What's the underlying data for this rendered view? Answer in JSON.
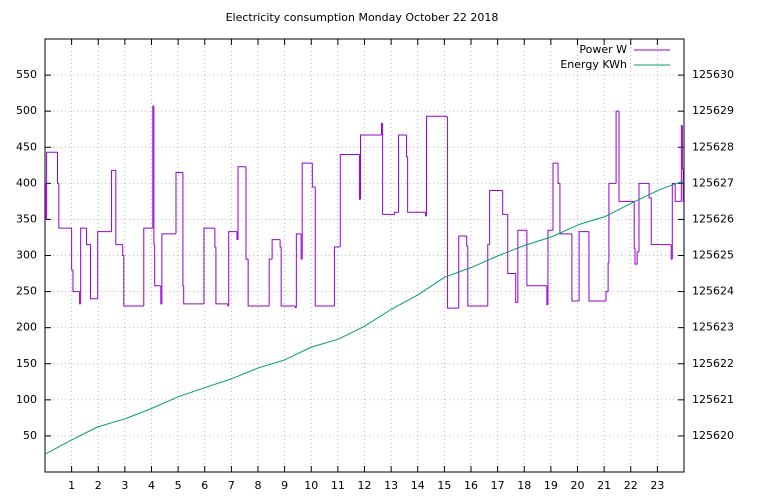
{
  "chart_data": {
    "type": "line",
    "title": "Electricity consumption Monday October 22 2018",
    "xlim": [
      0,
      24
    ],
    "xticks": [
      1,
      2,
      3,
      4,
      5,
      6,
      7,
      8,
      9,
      10,
      11,
      12,
      13,
      14,
      15,
      16,
      17,
      18,
      19,
      20,
      21,
      22,
      23
    ],
    "ylim": [
      0,
      600
    ],
    "yticks": [
      50,
      100,
      150,
      200,
      250,
      300,
      350,
      400,
      450,
      500,
      550
    ],
    "y2lim": [
      125619,
      125631
    ],
    "y2ticks": [
      125620,
      125621,
      125622,
      125623,
      125624,
      125625,
      125626,
      125627,
      125628,
      125629,
      125630
    ],
    "grid": true,
    "legend": "top-right",
    "series": [
      {
        "name": "Power W",
        "color": "#9400d3",
        "step": true,
        "x": [
          0,
          0.02,
          0.06,
          0.47,
          0.52,
          1.0,
          1.05,
          1.3,
          1.34,
          1.56,
          1.71,
          1.98,
          2.5,
          2.66,
          2.92,
          2.96,
          3.71,
          4.05,
          4.09,
          4.12,
          4.35,
          4.39,
          4.92,
          5.18,
          5.21,
          5.97,
          6.38,
          6.42,
          6.87,
          6.9,
          7.21,
          7.25,
          7.55,
          7.63,
          8.42,
          8.53,
          8.83,
          8.87,
          9.4,
          9.44,
          9.62,
          9.66,
          10.04,
          10.15,
          10.87,
          11.09,
          11.81,
          11.85,
          12.64,
          12.68,
          13.13,
          13.28,
          13.58,
          13.62,
          14.29,
          14.33,
          15.08,
          15.12,
          15.54,
          15.84,
          15.88,
          16.63,
          16.7,
          17.19,
          17.38,
          17.68,
          17.76,
          18.1,
          18.85,
          18.89,
          19.08,
          19.27,
          19.34,
          19.79,
          20.06,
          20.43,
          21.07,
          21.15,
          21.18,
          21.45,
          21.56,
          22.13,
          22.16,
          22.24,
          22.31,
          22.69,
          22.77,
          23.52,
          23.56,
          23.67,
          23.9,
          23.94,
          23.97
        ],
        "values": [
          400,
          350,
          443,
          400,
          338,
          280,
          250,
          233,
          338,
          315,
          240,
          333,
          418,
          315,
          300,
          230,
          338,
          507,
          315,
          258,
          233,
          330,
          415,
          258,
          233,
          338,
          312,
          233,
          230,
          333,
          322,
          423,
          295,
          230,
          295,
          322,
          312,
          230,
          228,
          330,
          295,
          428,
          395,
          230,
          312,
          440,
          378,
          467,
          483,
          357,
          360,
          467,
          437,
          360,
          355,
          493,
          492,
          227,
          327,
          313,
          230,
          315,
          390,
          357,
          275,
          235,
          335,
          258,
          232,
          335,
          428,
          400,
          330,
          237,
          333,
          237,
          250,
          290,
          400,
          500,
          375,
          310,
          288,
          305,
          400,
          380,
          315,
          295,
          400,
          375,
          480,
          420,
          375
        ]
      },
      {
        "name": "Energy KWh",
        "color": "#009e73",
        "axis": "y2",
        "x": [
          0.02,
          1.0,
          1.98,
          2.99,
          3.97,
          4.99,
          5.97,
          6.99,
          8.0,
          8.98,
          10.0,
          11.02,
          12.0,
          13.01,
          14.03,
          15.01,
          16.02,
          17.04,
          18.02,
          19.04,
          20.06,
          21.04,
          22.05,
          23.07,
          24
        ],
        "values": [
          125619.5,
          125619.89,
          125620.25,
          125620.47,
          125620.75,
          125621.08,
          125621.33,
          125621.58,
          125621.88,
          125622.1,
          125622.46,
          125622.68,
          125623.04,
          125623.51,
          125623.92,
          125624.4,
          125624.67,
          125625.0,
          125625.28,
          125625.52,
          125625.86,
          125626.08,
          125626.46,
          125626.82,
          125627.07
        ]
      }
    ]
  }
}
